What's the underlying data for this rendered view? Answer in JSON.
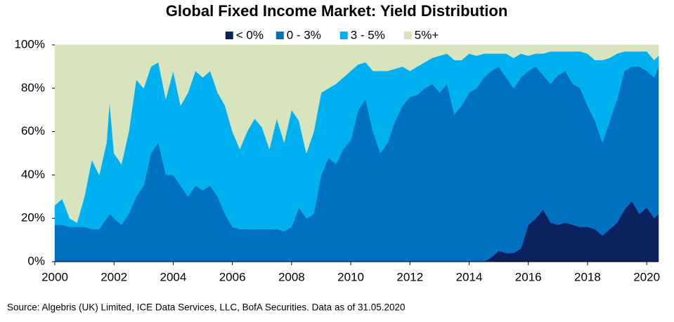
{
  "chart_data": {
    "type": "stacked_area",
    "title": "Global Fixed Income Market: Yield Distribution",
    "source": "Source: Algebris (UK) Limited, ICE Data Services, LLC, BofA Securities. Data as of 31.05.2020",
    "x": [
      2000,
      2000.25,
      2000.5,
      2000.75,
      2001,
      2001.25,
      2001.5,
      2001.75,
      2001.85,
      2002,
      2002.25,
      2002.5,
      2002.75,
      2003,
      2003.25,
      2003.5,
      2003.75,
      2004,
      2004.25,
      2004.5,
      2004.75,
      2005,
      2005.25,
      2005.5,
      2005.75,
      2006,
      2006.25,
      2006.5,
      2006.75,
      2007,
      2007.25,
      2007.5,
      2007.75,
      2008,
      2008.25,
      2008.5,
      2008.75,
      2009,
      2009.25,
      2009.5,
      2009.75,
      2010,
      2010.25,
      2010.5,
      2010.75,
      2011,
      2011.25,
      2011.5,
      2011.75,
      2012,
      2012.25,
      2012.5,
      2012.75,
      2013,
      2013.25,
      2013.5,
      2013.75,
      2014,
      2014.25,
      2014.5,
      2014.75,
      2015,
      2015.25,
      2015.5,
      2015.75,
      2016,
      2016.25,
      2016.5,
      2016.75,
      2017,
      2017.25,
      2017.5,
      2017.75,
      2018,
      2018.25,
      2018.5,
      2018.75,
      2019,
      2019.25,
      2019.5,
      2019.75,
      2020,
      2020.25,
      2020.4
    ],
    "series": [
      {
        "name": "< 0%",
        "color": "#0b2160",
        "values": [
          0,
          0,
          0,
          0,
          0,
          0,
          0,
          0,
          0,
          0,
          0,
          0,
          0,
          0,
          0,
          0,
          0,
          0,
          0,
          0,
          0,
          0,
          0,
          0,
          0,
          0,
          0,
          0,
          0,
          0,
          0,
          0,
          0,
          0,
          0,
          0,
          0,
          0,
          0,
          0,
          0,
          0,
          0,
          0,
          0,
          0,
          0,
          0,
          0,
          0,
          0,
          0,
          0,
          0,
          0,
          0,
          0,
          0,
          0,
          0,
          2,
          5,
          4,
          4,
          6,
          17,
          20,
          24,
          18,
          17,
          18,
          17,
          16,
          16,
          15,
          12,
          15,
          18,
          24,
          28,
          22,
          25,
          20,
          22
        ]
      },
      {
        "name": "0 - 3%",
        "color": "#0070c0",
        "values": [
          17,
          17,
          16,
          16,
          16,
          15,
          15,
          20,
          22,
          20,
          17,
          22,
          30,
          35,
          50,
          55,
          40,
          40,
          35,
          30,
          35,
          33,
          35,
          30,
          22,
          16,
          15,
          15,
          15,
          15,
          15,
          15,
          14,
          16,
          25,
          20,
          22,
          40,
          48,
          45,
          52,
          56,
          70,
          75,
          60,
          50,
          55,
          65,
          72,
          76,
          77,
          80,
          82,
          78,
          82,
          68,
          72,
          78,
          80,
          85,
          86,
          85,
          81,
          76,
          79,
          71,
          70,
          62,
          64,
          69,
          70,
          65,
          64,
          56,
          50,
          43,
          50,
          57,
          64,
          62,
          68,
          63,
          65,
          68
        ]
      },
      {
        "name": "3 - 5%",
        "color": "#00b0f0",
        "values": [
          9,
          12,
          4,
          2,
          14,
          32,
          25,
          35,
          52,
          30,
          28,
          38,
          54,
          45,
          40,
          37,
          35,
          48,
          37,
          48,
          53,
          52,
          53,
          48,
          50,
          44,
          37,
          45,
          51,
          47,
          37,
          51,
          41,
          54,
          40,
          30,
          38,
          38,
          32,
          37,
          33,
          32,
          21,
          17,
          28,
          38,
          33,
          24,
          18,
          12,
          13,
          12,
          12,
          17,
          14,
          25,
          21,
          18,
          15,
          11,
          8,
          6,
          11,
          14,
          11,
          7,
          6,
          10,
          15,
          11,
          9,
          15,
          17,
          24,
          28,
          38,
          29,
          21,
          9,
          7,
          7,
          9,
          8,
          5
        ]
      },
      {
        "name": "5%+",
        "color": "#d7e4bd",
        "values": [
          74,
          71,
          80,
          82,
          70,
          53,
          60,
          45,
          26,
          50,
          55,
          40,
          16,
          20,
          10,
          8,
          25,
          12,
          28,
          22,
          12,
          15,
          12,
          22,
          28,
          40,
          48,
          40,
          34,
          38,
          48,
          34,
          45,
          30,
          35,
          50,
          40,
          22,
          20,
          18,
          15,
          12,
          9,
          8,
          12,
          12,
          12,
          11,
          10,
          12,
          10,
          8,
          6,
          5,
          4,
          7,
          7,
          4,
          5,
          4,
          4,
          4,
          4,
          6,
          4,
          5,
          4,
          4,
          3,
          3,
          3,
          3,
          3,
          4,
          7,
          7,
          6,
          4,
          3,
          3,
          3,
          3,
          7,
          5
        ]
      }
    ],
    "xlim": [
      2000,
      2020.4
    ],
    "xticks": [
      2000,
      2002,
      2004,
      2006,
      2008,
      2010,
      2012,
      2014,
      2016,
      2018,
      2020
    ],
    "ylim": [
      0,
      100
    ],
    "yticks": [
      {
        "value": 0,
        "label": "0%"
      },
      {
        "value": 20,
        "label": "20%"
      },
      {
        "value": 40,
        "label": "40%"
      },
      {
        "value": 60,
        "label": "60%"
      },
      {
        "value": 80,
        "label": "80%"
      },
      {
        "value": 100,
        "label": "100%"
      }
    ],
    "legend": "top"
  }
}
